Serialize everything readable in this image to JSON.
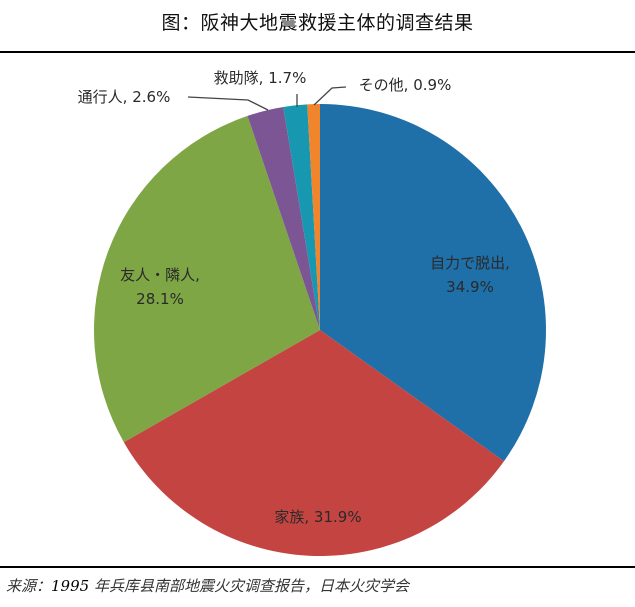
{
  "title": "图：阪神大地震救援主体的调查结果",
  "source": {
    "prefix": "来源：",
    "year": "1995",
    "rest": " 年兵库县南部地震火灾调查报告，日本火灾学会"
  },
  "labels": {
    "self": {
      "name": "自力で脱出,",
      "pct": "34.9%"
    },
    "family": {
      "full": "家族, 31.9%"
    },
    "friends": {
      "name": "友人・隣人,",
      "pct": "28.1%"
    },
    "passerby": {
      "full": "通行人, 2.6%"
    },
    "rescue": {
      "full": "救助隊, 1.7%"
    },
    "other": {
      "full": "その他, 0.9%"
    }
  },
  "chart_data": {
    "type": "pie",
    "title": "图：阪神大地震救援主体的调查结果",
    "categories": [
      "自力で脱出",
      "家族",
      "友人・隣人",
      "通行人",
      "救助隊",
      "その他"
    ],
    "values": [
      34.9,
      31.9,
      28.1,
      2.6,
      1.7,
      0.9
    ],
    "unit": "%",
    "colors": [
      "#1f6fa8",
      "#c44442",
      "#7ea645",
      "#7b5594",
      "#1898b0",
      "#f0852c"
    ],
    "start_angle": "12 o'clock, clockwise",
    "data_labels": [
      "自力で脱出, 34.9%",
      "家族, 31.9%",
      "友人・隣人, 28.1%",
      "通行人, 2.6%",
      "救助隊, 1.7%",
      "その他, 0.9%"
    ],
    "source": "来源：1995 年兵库县南部地震火灾调查报告，日本火灾学会"
  }
}
